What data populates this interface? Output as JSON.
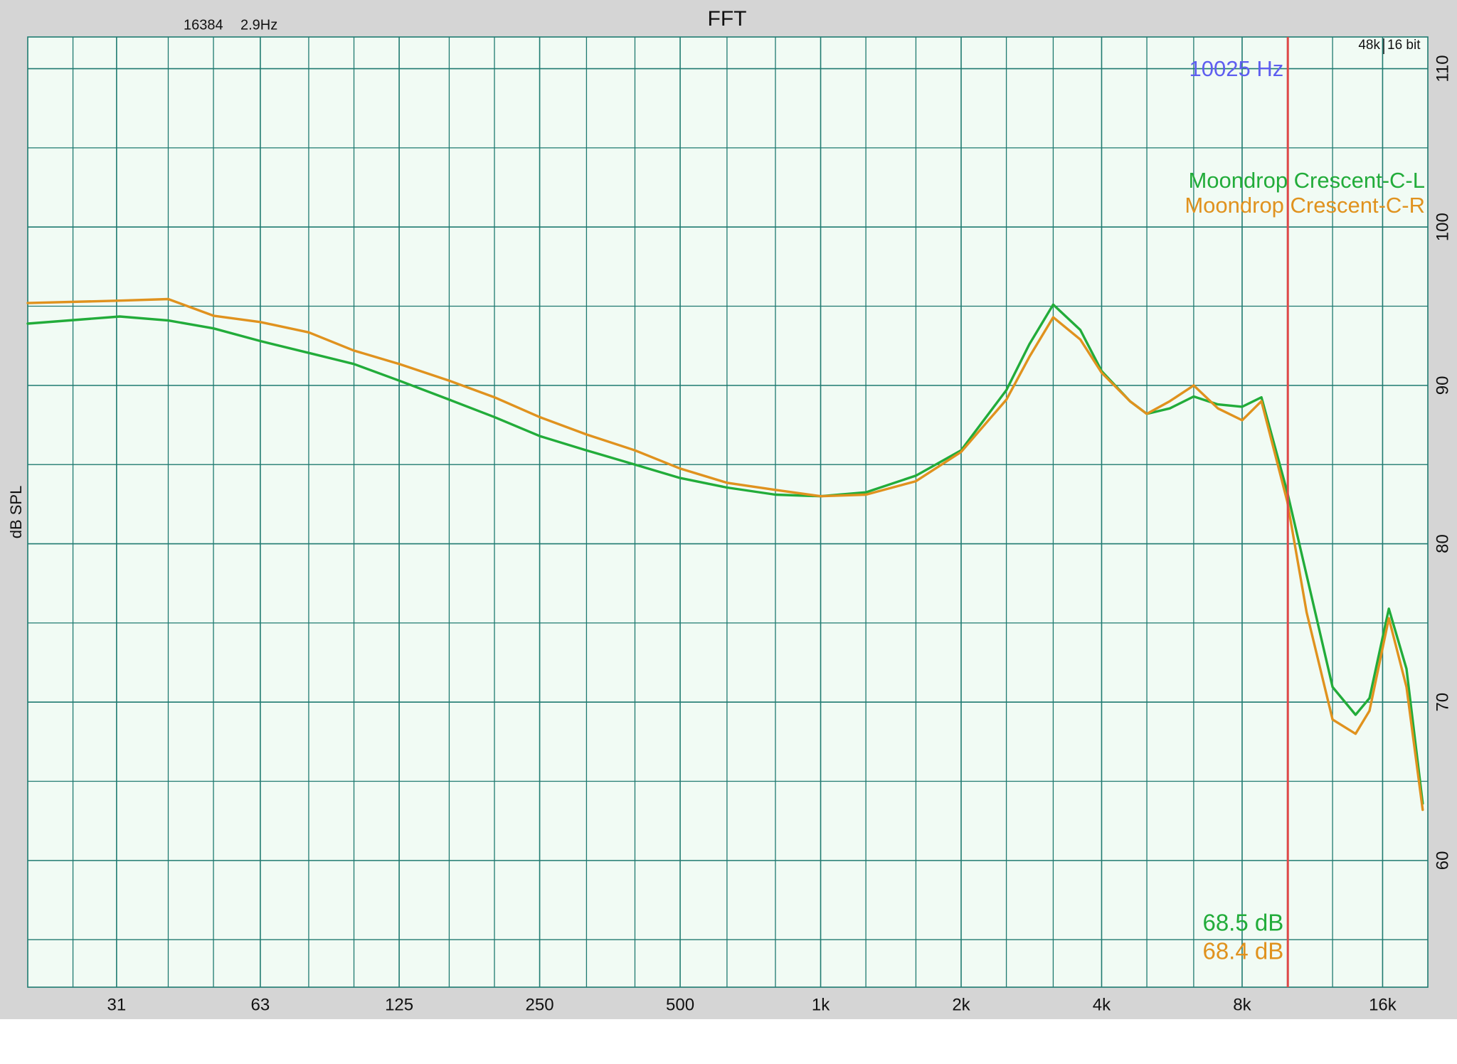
{
  "chart_data": {
    "type": "line",
    "title": "FFT",
    "fft_info": {
      "size": 16384,
      "resolution": "2.9Hz"
    },
    "format": {
      "sample_rate": "48k",
      "bit_depth": "16 bit"
    },
    "y_label": "dB SPL",
    "xscale": "log",
    "grid": true,
    "legend": "top-right",
    "xlim": [
      20,
      20000
    ],
    "ylim": [
      52,
      112
    ],
    "xticks": [
      31,
      63,
      125,
      250,
      500,
      {
        "value": 1000,
        "label": "1k"
      },
      {
        "value": 2000,
        "label": "2k"
      },
      {
        "value": 4000,
        "label": "4k"
      },
      {
        "value": 8000,
        "label": "8k"
      },
      {
        "value": 16000,
        "label": "16k"
      }
    ],
    "x_minor_grid": [
      25,
      40,
      50,
      80,
      100,
      160,
      200,
      315,
      400,
      630,
      800,
      1250,
      1600,
      2500,
      3150,
      5000,
      6300,
      10000,
      12500
    ],
    "yticks": [
      60,
      70,
      80,
      90,
      100,
      110
    ],
    "y_minor_grid": [
      55,
      65,
      75,
      85,
      95,
      105
    ],
    "cursor": {
      "frequency": {
        "value": 10025,
        "label": "10025 Hz"
      },
      "color": "#e04848"
    },
    "x": [
      20,
      31.5,
      40,
      50,
      63,
      80,
      100,
      125,
      160,
      200,
      250,
      315,
      400,
      500,
      630,
      800,
      1000,
      1250,
      1600,
      2000,
      2500,
      2800,
      3150,
      3600,
      4000,
      4600,
      5000,
      5600,
      6300,
      7100,
      8000,
      8800,
      10000,
      11000,
      12500,
      14000,
      15000,
      16500,
      18000,
      19500
    ],
    "series": [
      {
        "name": "Moondrop Crescent-C-L",
        "color": "#22ac3a",
        "cursor_reading": {
          "value": 68.5,
          "label": "68.5 dB"
        },
        "values": [
          93.9,
          94.35,
          94.1,
          93.6,
          92.8,
          92.05,
          91.35,
          90.3,
          89.1,
          88.0,
          86.8,
          85.9,
          85.0,
          84.15,
          83.55,
          83.1,
          83.0,
          83.25,
          84.3,
          85.9,
          89.7,
          92.6,
          95.1,
          93.5,
          90.9,
          89.0,
          88.2,
          88.55,
          89.3,
          88.8,
          88.65,
          89.25,
          83.25,
          78.0,
          70.95,
          69.2,
          70.25,
          75.9,
          72.1,
          63.6
        ]
      },
      {
        "name": "Moondrop Crescent-C-R",
        "color": "#e0921e",
        "cursor_reading": {
          "value": 68.4,
          "label": "68.4 dB"
        },
        "values": [
          95.2,
          95.35,
          95.45,
          94.4,
          94.0,
          93.35,
          92.2,
          91.35,
          90.3,
          89.25,
          88.0,
          86.9,
          85.9,
          84.75,
          83.85,
          83.4,
          83.0,
          83.1,
          83.95,
          85.8,
          89.1,
          91.8,
          94.3,
          92.9,
          90.8,
          89.0,
          88.2,
          89.0,
          90.0,
          88.55,
          87.8,
          89.0,
          82.65,
          75.65,
          68.9,
          68.0,
          69.45,
          75.3,
          70.95,
          63.2
        ]
      }
    ]
  }
}
